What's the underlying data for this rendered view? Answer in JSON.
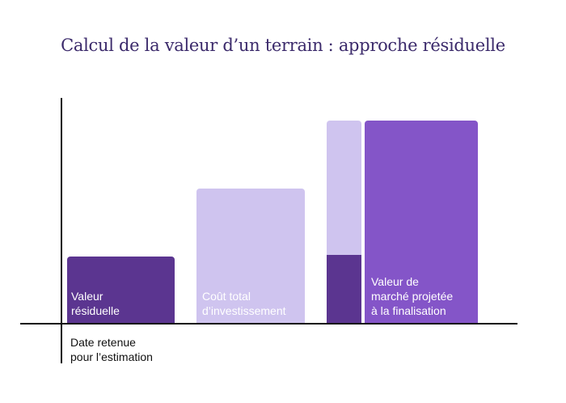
{
  "title": "Calcul de la valeur d’un terrain : approche résiduelle",
  "colors": {
    "dark_purple": "#5b3590",
    "light_lavender": "#cfc4ef",
    "medium_purple": "#8455c8",
    "title": "#3b2a6b"
  },
  "bars": {
    "residual_value": {
      "label": "Valeur\nrésiduelle"
    },
    "total_investment": {
      "label": "Coût total\nd’investissement"
    },
    "projected_market_value": {
      "label": "Valeur de\nmarché projetée\nà la finalisation"
    }
  },
  "axis_caption": "Date retenue\npour l’estimation"
}
